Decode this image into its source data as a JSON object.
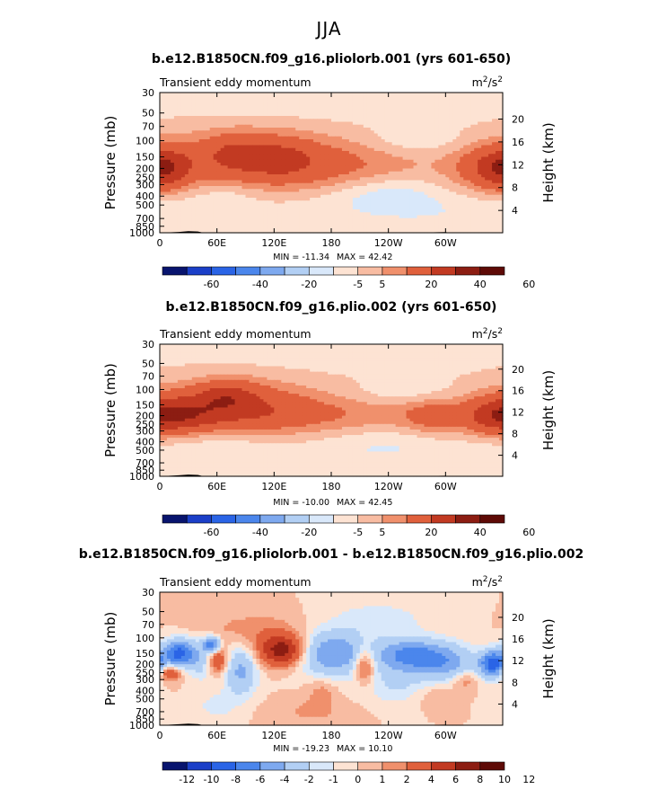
{
  "suptitle": "JJA",
  "colors": {
    "palette_13": [
      "#08146e",
      "#1b3fc8",
      "#2a64e6",
      "#4b86ec",
      "#7ea9ef",
      "#b2cff4",
      "#d9e8fa",
      "#fde3d3",
      "#f8bca2",
      "#f0906c",
      "#e0603c",
      "#c23a22",
      "#8c1d12",
      "#5e0a06"
    ],
    "contour": "#9aa0a8"
  },
  "chart_data": [
    {
      "type": "heatmap",
      "title": "b.e12.B1850CN.f09_g16.pliolorb.001 (yrs 601-650)",
      "left_label": "Transient eddy momentum",
      "units_base": "m",
      "units_sup1": "2",
      "units_mid": "/s",
      "units_sup2": "2",
      "ylabel": "Pressure (mb)",
      "ylabel_right": "Height (km)",
      "xlabel": "",
      "x_ticks": [
        "0",
        "60E",
        "120E",
        "180",
        "120W",
        "60W"
      ],
      "x_tick_values": [
        0,
        60,
        120,
        180,
        240,
        300
      ],
      "xlim": [
        0,
        360
      ],
      "y_ticks": [
        "30",
        "50",
        "70",
        "100",
        "150",
        "200",
        "250",
        "300",
        "400",
        "500",
        "700",
        "850",
        "1000"
      ],
      "y_tick_values": [
        30,
        50,
        70,
        100,
        150,
        200,
        250,
        300,
        400,
        500,
        700,
        850,
        1000
      ],
      "ylim": [
        1000,
        30
      ],
      "height_ticks": [
        "4",
        "8",
        "12",
        "16",
        "20"
      ],
      "height_tick_values": [
        4,
        8,
        12,
        16,
        20
      ],
      "min_label": "MIN = -11.34",
      "max_label": "MAX =  42.42",
      "colorbar_labels": [
        "-60",
        "-40",
        "-20",
        "-5",
        "5",
        "20",
        "40",
        "60"
      ],
      "levels": [
        -70,
        -60,
        -50,
        -40,
        -30,
        -20,
        -10,
        -5,
        0,
        5,
        10,
        20,
        30,
        40,
        50,
        60,
        70
      ],
      "field": {
        "base": 0.5,
        "blobs": [
          {
            "lon": 100,
            "p": 160,
            "slon": 65,
            "sp": 0.55,
            "amp": 15
          },
          {
            "lon": 180,
            "p": 200,
            "slon": 90,
            "sp": 0.42,
            "amp": 9
          },
          {
            "lon": 350,
            "p": 200,
            "slon": 28,
            "sp": 0.4,
            "amp": 16
          },
          {
            "lon": 5,
            "p": 200,
            "slon": 18,
            "sp": 0.35,
            "amp": 14
          },
          {
            "lon": 80,
            "p": 130,
            "slon": 22,
            "sp": 0.3,
            "amp": 8
          },
          {
            "lon": 130,
            "p": 150,
            "slon": 20,
            "sp": 0.3,
            "amp": 6
          },
          {
            "lon": 240,
            "p": 380,
            "slon": 40,
            "sp": 0.35,
            "amp": -7
          },
          {
            "lon": 270,
            "p": 100,
            "slon": 35,
            "sp": 0.25,
            "amp": -5
          },
          {
            "lon": 70,
            "p": 380,
            "slon": 25,
            "sp": 0.3,
            "amp": -4
          },
          {
            "lon": 180,
            "p": 450,
            "slon": 120,
            "sp": 0.55,
            "amp": -3.5
          },
          {
            "lon": 180,
            "p": 40,
            "slon": 180,
            "sp": 0.4,
            "amp": -3.5
          },
          {
            "lon": 20,
            "p": 600,
            "slon": 40,
            "sp": 0.3,
            "amp": -3
          },
          {
            "lon": 300,
            "p": 650,
            "slon": 50,
            "sp": 0.3,
            "amp": -2.5
          }
        ]
      },
      "topography": [
        [
          0,
          1000
        ],
        [
          20,
          980
        ],
        [
          30,
          960
        ],
        [
          40,
          970
        ],
        [
          45,
          995
        ],
        [
          260,
          990
        ],
        [
          262,
          1000
        ],
        [
          300,
          985
        ],
        [
          305,
          1000
        ]
      ]
    },
    {
      "type": "heatmap",
      "title": "b.e12.B1850CN.f09_g16.plio.002 (yrs 601-650)",
      "left_label": "Transient eddy momentum",
      "units_base": "m",
      "units_sup1": "2",
      "units_mid": "/s",
      "units_sup2": "2",
      "ylabel": "Pressure (mb)",
      "ylabel_right": "Height (km)",
      "xlabel": "",
      "x_ticks": [
        "0",
        "60E",
        "120E",
        "180",
        "120W",
        "60W"
      ],
      "x_tick_values": [
        0,
        60,
        120,
        180,
        240,
        300
      ],
      "xlim": [
        0,
        360
      ],
      "y_ticks": [
        "30",
        "50",
        "70",
        "100",
        "150",
        "200",
        "250",
        "300",
        "400",
        "500",
        "700",
        "850",
        "1000"
      ],
      "y_tick_values": [
        30,
        50,
        70,
        100,
        150,
        200,
        250,
        300,
        400,
        500,
        700,
        850,
        1000
      ],
      "ylim": [
        1000,
        30
      ],
      "height_ticks": [
        "4",
        "8",
        "12",
        "16",
        "20"
      ],
      "height_tick_values": [
        4,
        8,
        12,
        16,
        20
      ],
      "min_label": "MIN = -10.00",
      "max_label": "MAX =  42.45",
      "colorbar_labels": [
        "-60",
        "-40",
        "-20",
        "-5",
        "5",
        "20",
        "40",
        "60"
      ],
      "levels": [
        -70,
        -60,
        -50,
        -40,
        -30,
        -20,
        -10,
        -5,
        0,
        5,
        10,
        20,
        30,
        40,
        50,
        60,
        70
      ],
      "field": {
        "base": 0.5,
        "blobs": [
          {
            "lon": 80,
            "p": 160,
            "slon": 55,
            "sp": 0.5,
            "amp": 17
          },
          {
            "lon": 70,
            "p": 115,
            "slon": 22,
            "sp": 0.28,
            "amp": 12
          },
          {
            "lon": 20,
            "p": 200,
            "slon": 30,
            "sp": 0.35,
            "amp": 16
          },
          {
            "lon": 180,
            "p": 200,
            "slon": 90,
            "sp": 0.38,
            "amp": 9
          },
          {
            "lon": 285,
            "p": 200,
            "slon": 22,
            "sp": 0.35,
            "amp": 10
          },
          {
            "lon": 350,
            "p": 200,
            "slon": 25,
            "sp": 0.38,
            "amp": 15
          },
          {
            "lon": 260,
            "p": 110,
            "slon": 40,
            "sp": 0.25,
            "amp": -5
          },
          {
            "lon": 240,
            "p": 420,
            "slon": 45,
            "sp": 0.35,
            "amp": -4
          },
          {
            "lon": 60,
            "p": 400,
            "slon": 35,
            "sp": 0.3,
            "amp": -4
          },
          {
            "lon": 180,
            "p": 500,
            "slon": 120,
            "sp": 0.55,
            "amp": -3
          },
          {
            "lon": 180,
            "p": 40,
            "slon": 180,
            "sp": 0.4,
            "amp": -2.5
          },
          {
            "lon": 350,
            "p": 550,
            "slon": 30,
            "sp": 0.35,
            "amp": -3
          }
        ]
      },
      "topography": [
        [
          0,
          1000
        ],
        [
          20,
          975
        ],
        [
          30,
          955
        ],
        [
          40,
          965
        ],
        [
          45,
          995
        ],
        [
          260,
          990
        ],
        [
          262,
          1000
        ],
        [
          300,
          985
        ],
        [
          305,
          1000
        ]
      ]
    },
    {
      "type": "heatmap",
      "title": "b.e12.B1850CN.f09_g16.pliolorb.001 - b.e12.B1850CN.f09_g16.plio.002",
      "left_label": "Transient eddy momentum",
      "units_base": "m",
      "units_sup1": "2",
      "units_mid": "/s",
      "units_sup2": "2",
      "ylabel": "Pressure (mb)",
      "ylabel_right": "Height (km)",
      "xlabel": "",
      "x_ticks": [
        "0",
        "60E",
        "120E",
        "180",
        "120W",
        "60W"
      ],
      "x_tick_values": [
        0,
        60,
        120,
        180,
        240,
        300
      ],
      "xlim": [
        0,
        360
      ],
      "y_ticks": [
        "30",
        "50",
        "70",
        "100",
        "150",
        "200",
        "250",
        "300",
        "400",
        "500",
        "700",
        "850",
        "1000"
      ],
      "y_tick_values": [
        30,
        50,
        70,
        100,
        150,
        200,
        250,
        300,
        400,
        500,
        700,
        850,
        1000
      ],
      "ylim": [
        1000,
        30
      ],
      "height_ticks": [
        "4",
        "8",
        "12",
        "16",
        "20"
      ],
      "height_tick_values": [
        4,
        8,
        12,
        16,
        20
      ],
      "min_label": "MIN = -19.23",
      "max_label": "MAX =  10.10",
      "colorbar_labels": [
        "-12",
        "-10",
        "-8",
        "-6",
        "-4",
        "-2",
        "-1",
        "0",
        "1",
        "2",
        "4",
        "6",
        "8",
        "10",
        "12"
      ],
      "levels": [
        -14,
        -12,
        -10,
        -8,
        -6,
        -4,
        -2,
        -1,
        0,
        1,
        2,
        4,
        6,
        8,
        10,
        12,
        14
      ],
      "field": {
        "base": 0.0,
        "blobs": [
          {
            "lon": 20,
            "p": 150,
            "slon": 12,
            "sp": 0.25,
            "amp": -9
          },
          {
            "lon": 55,
            "p": 120,
            "slon": 6,
            "sp": 0.15,
            "amp": -8
          },
          {
            "lon": 10,
            "p": 250,
            "slon": 8,
            "sp": 0.15,
            "amp": 5
          },
          {
            "lon": 45,
            "p": 180,
            "slon": 10,
            "sp": 0.35,
            "amp": -3
          },
          {
            "lon": 60,
            "p": 180,
            "slon": 8,
            "sp": 0.25,
            "amp": 5
          },
          {
            "lon": 85,
            "p": 240,
            "slon": 12,
            "sp": 0.45,
            "amp": -4.5
          },
          {
            "lon": 130,
            "p": 140,
            "slon": 18,
            "sp": 0.3,
            "amp": 8
          },
          {
            "lon": 180,
            "p": 150,
            "slon": 30,
            "sp": 0.4,
            "amp": -6
          },
          {
            "lon": 215,
            "p": 200,
            "slon": 8,
            "sp": 0.35,
            "amp": 5
          },
          {
            "lon": 265,
            "p": 160,
            "slon": 25,
            "sp": 0.3,
            "amp": -7
          },
          {
            "lon": 305,
            "p": 200,
            "slon": 20,
            "sp": 0.35,
            "amp": -4
          },
          {
            "lon": 350,
            "p": 200,
            "slon": 10,
            "sp": 0.25,
            "amp": -9
          },
          {
            "lon": 320,
            "p": 300,
            "slon": 10,
            "sp": 0.2,
            "amp": 2.5
          },
          {
            "lon": 250,
            "p": 350,
            "slon": 30,
            "sp": 0.35,
            "amp": -2
          },
          {
            "lon": 100,
            "p": 80,
            "slon": 40,
            "sp": 0.35,
            "amp": 1.5
          },
          {
            "lon": 230,
            "p": 60,
            "slon": 40,
            "sp": 0.35,
            "amp": -1.5
          },
          {
            "lon": 60,
            "p": 600,
            "slon": 15,
            "sp": 0.25,
            "amp": -1.5
          },
          {
            "lon": 160,
            "p": 700,
            "slon": 30,
            "sp": 0.25,
            "amp": 1.2
          },
          {
            "lon": 170,
            "p": 400,
            "slon": 12,
            "sp": 0.25,
            "amp": 1.5
          },
          {
            "lon": 290,
            "p": 450,
            "slon": 15,
            "sp": 0.25,
            "amp": 1.5
          }
        ]
      },
      "topography": [
        [
          0,
          1000
        ],
        [
          20,
          975
        ],
        [
          30,
          960
        ],
        [
          40,
          970
        ],
        [
          45,
          995
        ],
        [
          260,
          990
        ],
        [
          262,
          1000
        ],
        [
          300,
          985
        ],
        [
          305,
          1000
        ]
      ]
    }
  ]
}
